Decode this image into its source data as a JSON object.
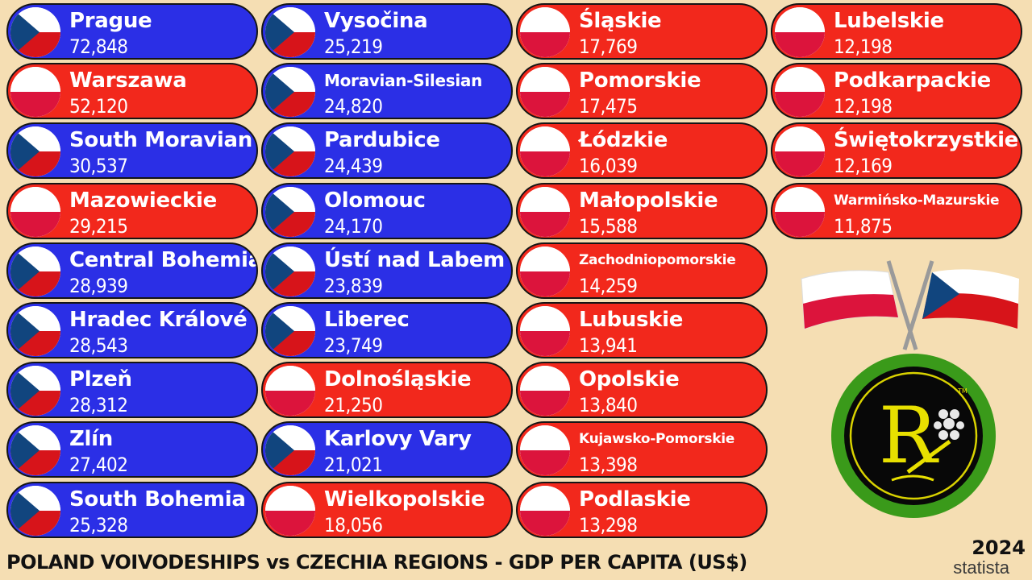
{
  "title": "POLAND VOIVODESHIPS vs CZECHIA REGIONS - GDP PER CAPITA (US$)",
  "year": "2024",
  "source": "statista",
  "logo_letter": "R",
  "colors": {
    "czech": "#2b2fe6",
    "poland": "#f2281c",
    "background": "#f5deb3"
  },
  "regions": [
    {
      "name": "Prague",
      "value": "72,848",
      "country": "czech"
    },
    {
      "name": "Warszawa",
      "value": "52,120",
      "country": "poland"
    },
    {
      "name": "South Moravian",
      "value": "30,537",
      "country": "czech"
    },
    {
      "name": "Mazowieckie",
      "value": "29,215",
      "country": "poland"
    },
    {
      "name": "Central Bohemia",
      "value": "28,939",
      "country": "czech"
    },
    {
      "name": "Hradec Králové",
      "value": "28,543",
      "country": "czech"
    },
    {
      "name": "Plzeň",
      "value": "28,312",
      "country": "czech"
    },
    {
      "name": "Zlín",
      "value": "27,402",
      "country": "czech"
    },
    {
      "name": "South Bohemia",
      "value": "25,328",
      "country": "czech"
    },
    {
      "name": "Vysočina",
      "value": "25,219",
      "country": "czech"
    },
    {
      "name": "Moravian-Silesian",
      "value": "24,820",
      "country": "czech"
    },
    {
      "name": "Pardubice",
      "value": "24,439",
      "country": "czech"
    },
    {
      "name": "Olomouc",
      "value": "24,170",
      "country": "czech"
    },
    {
      "name": "Ústí nad Labem",
      "value": "23,839",
      "country": "czech"
    },
    {
      "name": "Liberec",
      "value": "23,749",
      "country": "czech"
    },
    {
      "name": "Dolnośląskie",
      "value": "21,250",
      "country": "poland"
    },
    {
      "name": "Karlovy Vary",
      "value": "21,021",
      "country": "czech"
    },
    {
      "name": "Wielkopolskie",
      "value": "18,056",
      "country": "poland"
    },
    {
      "name": "Śląskie",
      "value": "17,769",
      "country": "poland"
    },
    {
      "name": "Pomorskie",
      "value": "17,475",
      "country": "poland"
    },
    {
      "name": "Łódzkie",
      "value": "16,039",
      "country": "poland"
    },
    {
      "name": "Małopolskie",
      "value": "15,588",
      "country": "poland"
    },
    {
      "name": "Zachodniopomorskie",
      "value": "14,259",
      "country": "poland"
    },
    {
      "name": "Lubuskie",
      "value": "13,941",
      "country": "poland"
    },
    {
      "name": "Opolskie",
      "value": "13,840",
      "country": "poland"
    },
    {
      "name": "Kujawsko-Pomorskie",
      "value": "13,398",
      "country": "poland"
    },
    {
      "name": "Podlaskie",
      "value": "13,298",
      "country": "poland"
    },
    {
      "name": "Lubelskie",
      "value": "12,198",
      "country": "poland"
    },
    {
      "name": "Podkarpackie",
      "value": "12,198",
      "country": "poland"
    },
    {
      "name": "Świętokrzystkie",
      "value": "12,169",
      "country": "poland"
    },
    {
      "name": "Warmińsko-Mazurskie",
      "value": "11,875",
      "country": "poland"
    }
  ]
}
